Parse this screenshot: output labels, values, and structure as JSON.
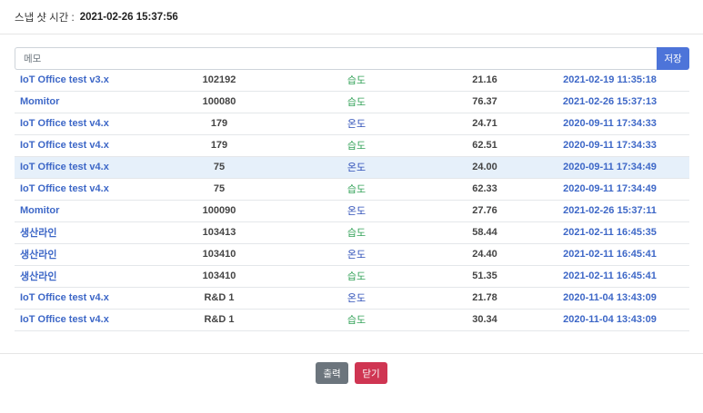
{
  "header": {
    "snapshot_label": "스냅 샷 시간 :",
    "snapshot_time": "2021-02-26 15:37:56"
  },
  "memo": {
    "placeholder": "메모",
    "save_label": "저장"
  },
  "rows": [
    {
      "name": "IoT Office test v3.x",
      "id": "102192",
      "type": "습도",
      "kind": "hum",
      "value": "21.16",
      "time": "2021-02-19 11:35:18"
    },
    {
      "name": "Momitor",
      "id": "100080",
      "type": "습도",
      "kind": "hum",
      "value": "76.37",
      "time": "2021-02-26 15:37:13"
    },
    {
      "name": "IoT Office test v4.x",
      "id": "179",
      "type": "온도",
      "kind": "temp",
      "value": "24.71",
      "time": "2020-09-11 17:34:33"
    },
    {
      "name": "IoT Office test v4.x",
      "id": "179",
      "type": "습도",
      "kind": "hum",
      "value": "62.51",
      "time": "2020-09-11 17:34:33"
    },
    {
      "name": "IoT Office test v4.x",
      "id": "75",
      "type": "온도",
      "kind": "temp",
      "value": "24.00",
      "time": "2020-09-11 17:34:49",
      "selected": true
    },
    {
      "name": "IoT Office test v4.x",
      "id": "75",
      "type": "습도",
      "kind": "hum",
      "value": "62.33",
      "time": "2020-09-11 17:34:49"
    },
    {
      "name": "Momitor",
      "id": "100090",
      "type": "온도",
      "kind": "temp",
      "value": "27.76",
      "time": "2021-02-26 15:37:11"
    },
    {
      "name": "생산라인",
      "id": "103413",
      "type": "습도",
      "kind": "hum",
      "value": "58.44",
      "time": "2021-02-11 16:45:35"
    },
    {
      "name": "생산라인",
      "id": "103410",
      "type": "온도",
      "kind": "temp",
      "value": "24.40",
      "time": "2021-02-11 16:45:41"
    },
    {
      "name": "생산라인",
      "id": "103410",
      "type": "습도",
      "kind": "hum",
      "value": "51.35",
      "time": "2021-02-11 16:45:41"
    },
    {
      "name": "IoT Office test v4.x",
      "id": "R&D 1",
      "type": "온도",
      "kind": "temp",
      "value": "21.78",
      "time": "2020-11-04 13:43:09"
    },
    {
      "name": "IoT Office test v4.x",
      "id": "R&D 1",
      "type": "습도",
      "kind": "hum",
      "value": "30.34",
      "time": "2020-11-04 13:43:09"
    }
  ],
  "footer": {
    "print_label": "출력",
    "close_label": "닫기"
  },
  "colors": {
    "primary": "#4d74d9",
    "link": "#3d67c7",
    "temp": "#2e4fb8",
    "hum": "#35a35a",
    "print": "#6c757d",
    "close": "#cf3552"
  }
}
